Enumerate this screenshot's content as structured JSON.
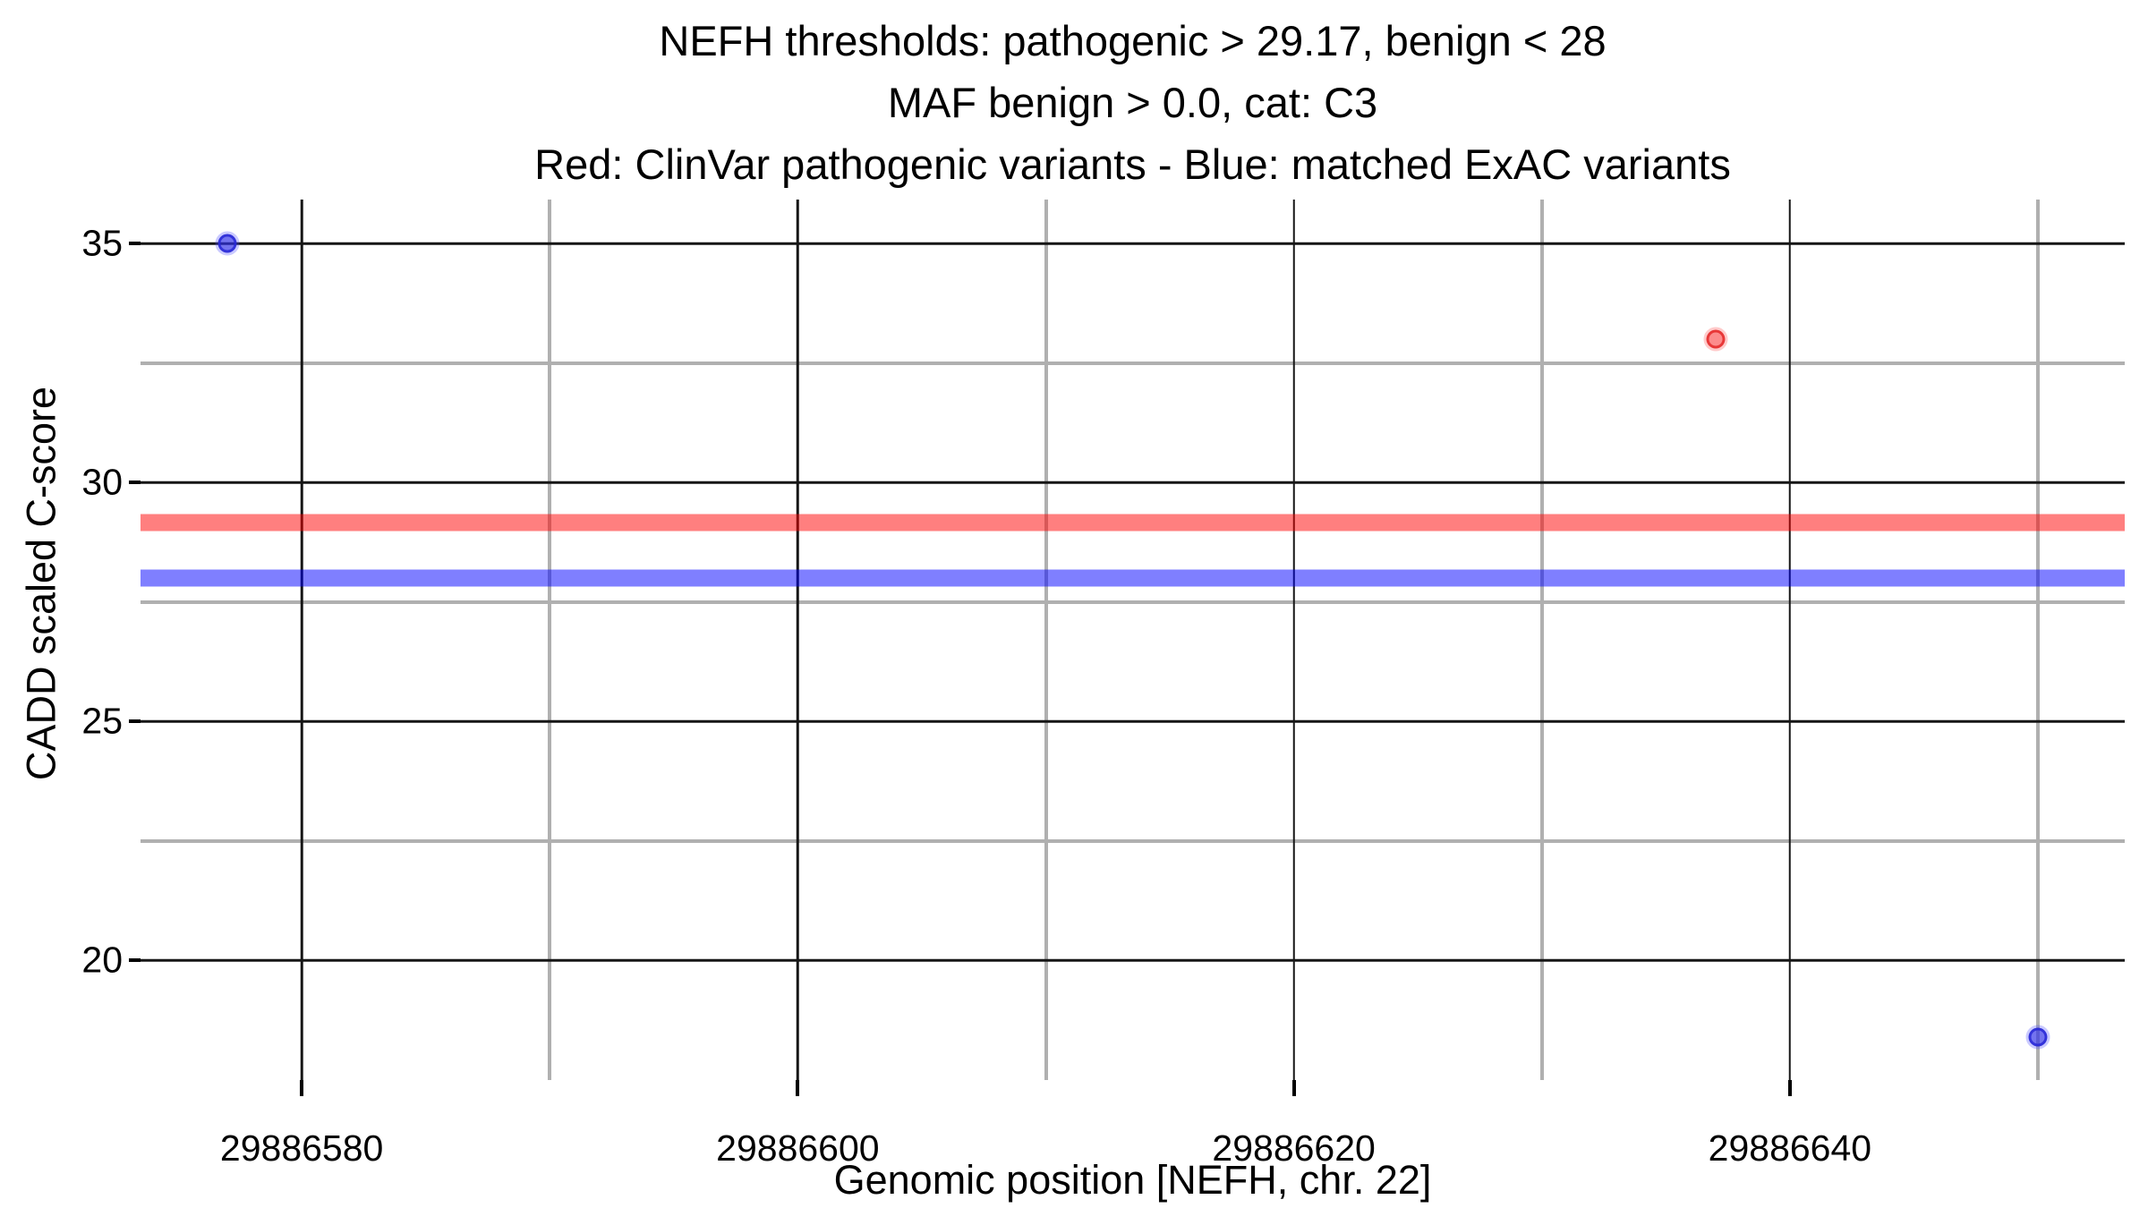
{
  "chart_data": {
    "type": "scatter",
    "title_lines": [
      "NEFH thresholds: pathogenic > 29.17, benign < 28",
      "MAF benign > 0.0, cat: C3",
      "Red: ClinVar pathogenic variants - Blue: matched ExAC variants"
    ],
    "xlabel": "Genomic position [NEFH, chr. 22]",
    "ylabel": "CADD scaled C-score",
    "xlim": [
      29886573.5,
      29886653.5
    ],
    "ylim": [
      17.5,
      35.92
    ],
    "x_major_ticks": [
      29886580,
      29886600,
      29886620,
      29886640
    ],
    "x_minor_gridlines": [
      29886590,
      29886610,
      29886630,
      29886650
    ],
    "y_major_ticks": [
      20,
      25,
      30,
      35
    ],
    "y_minor_gridlines": [
      22.5,
      27.5,
      32.5
    ],
    "grid": "major and minor gridlines shown",
    "legend_position": "none (legend encoded in title line 3)",
    "series": [
      {
        "name": "ClinVar pathogenic variants",
        "color_key": "clinvar_red",
        "points": [
          {
            "x": 29886637,
            "y": 33.0
          }
        ]
      },
      {
        "name": "matched ExAC variants",
        "color_key": "exac_blue",
        "points": [
          {
            "x": 29886577,
            "y": 35.0
          },
          {
            "x": 29886650,
            "y": 18.4
          }
        ]
      }
    ],
    "threshold_lines": [
      {
        "name": "pathogenic-threshold-band",
        "label": "pathogenic > 29.17",
        "y": 29.17,
        "color_key": "threshold_red"
      },
      {
        "name": "benign-threshold-band",
        "label": "benign < 28",
        "y": 28.0,
        "color_key": "threshold_blue"
      }
    ],
    "colors": {
      "threshold_red": "rgba(255,0,0,0.5)",
      "threshold_blue": "rgba(0,0,255,0.5)",
      "clinvar_red_fill": "rgba(250,45,45,0.55)",
      "clinvar_red_edge": "rgba(228,35,35,0.8)",
      "clinvar_red_halo": "rgba(255,70,70,0.28)",
      "exac_blue_fill": "rgba(48,48,232,0.68)",
      "exac_blue_edge": "rgba(40,40,215,0.85)",
      "exac_blue_halo": "rgba(80,80,255,0.3)",
      "grid_major": "#161616",
      "grid_minor": "#b0b0b0",
      "tick_color": "#000000",
      "text_color": "#000000",
      "background": "#ffffff"
    }
  }
}
